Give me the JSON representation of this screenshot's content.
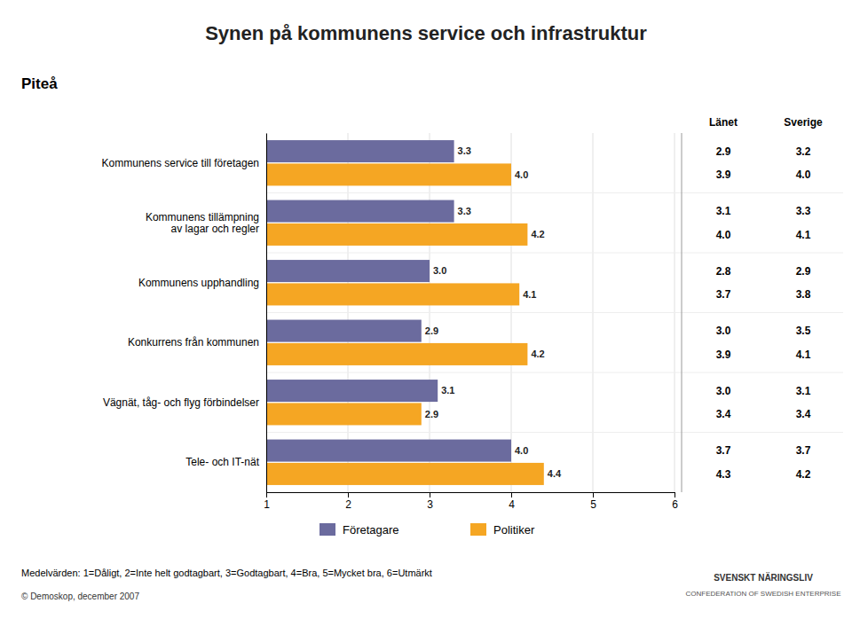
{
  "chart_data": {
    "type": "bar",
    "orientation": "horizontal",
    "title": "Synen på kommunens service och infrastruktur",
    "subtitle": "Piteå",
    "categories": [
      "Kommunens service till företagen",
      "Kommunens tillämpning\nav lagar och regler",
      "Kommunens upphandling",
      "Konkurrens från kommunen",
      "Vägnät, tåg- och flyg förbindelser",
      "Tele- och IT-nät"
    ],
    "series": [
      {
        "name": "Företagare",
        "color": "#6b6b9e",
        "values": [
          3.3,
          3.3,
          3.0,
          2.9,
          3.1,
          4.0
        ],
        "value_labels": [
          "3.3",
          "3.3",
          "3.0",
          "2.9",
          "3.1",
          "4.0"
        ]
      },
      {
        "name": "Politiker",
        "color": "#f5a623",
        "values": [
          4.0,
          4.2,
          4.1,
          4.2,
          2.9,
          4.4
        ],
        "value_labels": [
          "4.0",
          "4.2",
          "4.1",
          "4.2",
          "2.9",
          "4.4"
        ]
      }
    ],
    "reference_columns": [
      {
        "name": "Länet",
        "series": [
          {
            "values": [
              2.9,
              3.1,
              2.8,
              3.0,
              3.0,
              3.7
            ],
            "value_labels": [
              "2.9",
              "3.1",
              "2.8",
              "3.0",
              "3.0",
              "3.7"
            ]
          },
          {
            "values": [
              3.9,
              4.0,
              3.7,
              3.9,
              3.4,
              4.3
            ],
            "value_labels": [
              "3.9",
              "4.0",
              "3.7",
              "3.9",
              "3.4",
              "4.3"
            ]
          }
        ]
      },
      {
        "name": "Sverige",
        "series": [
          {
            "values": [
              3.2,
              3.3,
              2.9,
              3.5,
              3.1,
              3.7
            ],
            "value_labels": [
              "3.2",
              "3.3",
              "2.9",
              "3.5",
              "3.1",
              "3.7"
            ]
          },
          {
            "values": [
              4.0,
              4.1,
              3.8,
              4.1,
              3.4,
              4.2
            ],
            "value_labels": [
              "4.0",
              "4.1",
              "3.8",
              "4.1",
              "3.4",
              "4.2"
            ]
          }
        ]
      }
    ],
    "xlim": [
      1,
      6
    ],
    "xticks": [
      1,
      2,
      3,
      4,
      5,
      6
    ],
    "grid": true,
    "legend": "bottom",
    "data_labels": true,
    "annotations": [
      "Medelvärden: 1=Dåligt, 2=Inte helt godtagbart, 3=Godtagbart, 4=Bra, 5=Mycket bra, 6=Utmärkt",
      "© Demoskop, december 2007",
      "SVENSKT NÄRINGSLIV",
      "CONFEDERATION OF SWEDISH ENTERPRISE"
    ]
  }
}
